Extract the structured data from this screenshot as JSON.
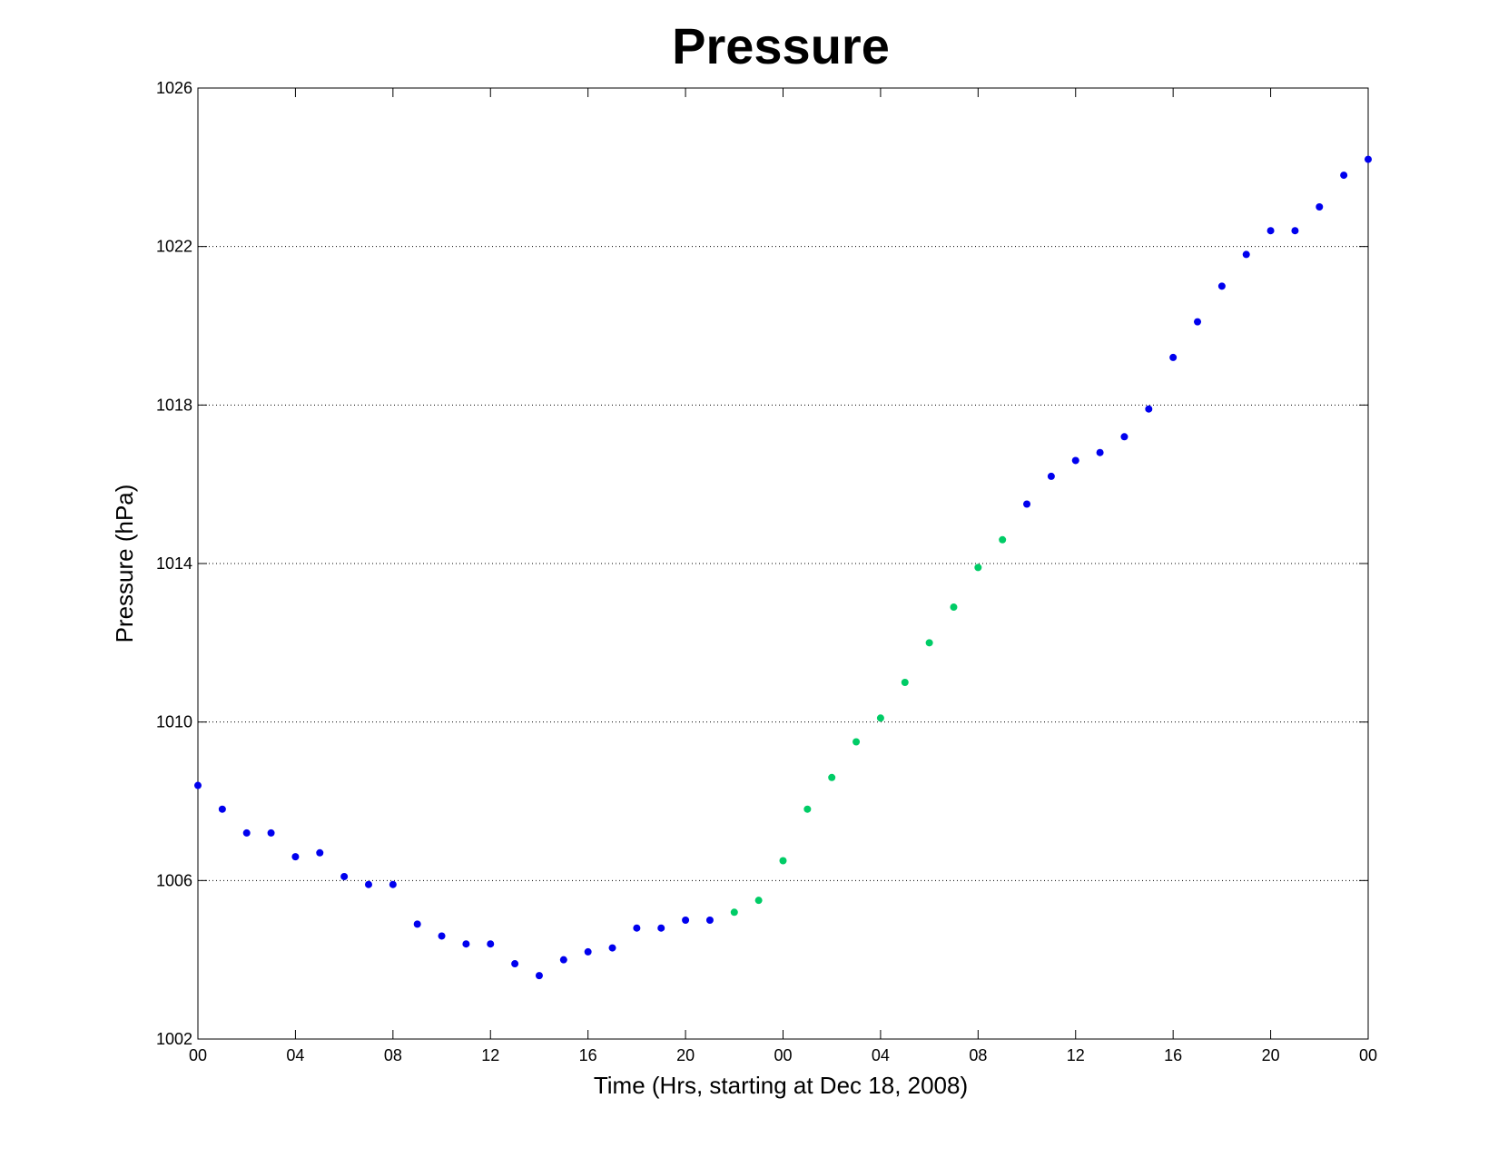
{
  "chart_data": {
    "type": "scatter",
    "title": "Pressure",
    "xlabel": "Time (Hrs, starting at Dec 18, 2008)",
    "ylabel": "Pressure (hPa)",
    "xlim": [
      0,
      48
    ],
    "ylim": [
      1002,
      1026
    ],
    "x_ticks": [
      0,
      4,
      8,
      12,
      16,
      20,
      24,
      28,
      32,
      36,
      40,
      44,
      48
    ],
    "x_tick_labels": [
      "00",
      "04",
      "08",
      "12",
      "16",
      "20",
      "00",
      "04",
      "08",
      "12",
      "16",
      "20",
      "00"
    ],
    "y_ticks": [
      1002,
      1006,
      1010,
      1014,
      1018,
      1022,
      1026
    ],
    "y_tick_labels": [
      "1002",
      "1006",
      "1010",
      "1014",
      "1018",
      "1022",
      "1026"
    ],
    "grid": "horizontal dotted",
    "colors": {
      "blue": "#0000ee",
      "green": "#00cc66"
    },
    "series": [
      {
        "color": "#0000ee",
        "x": [
          0,
          1,
          2,
          3,
          4,
          5,
          6,
          7,
          8,
          9,
          10,
          11,
          12,
          13,
          14,
          15,
          16,
          17,
          18,
          19,
          20,
          21,
          34,
          35,
          36,
          37,
          38,
          39,
          40,
          41,
          42,
          43,
          44,
          45,
          46,
          47,
          48
        ],
        "y": [
          1008.4,
          1007.8,
          1007.2,
          1007.2,
          1006.6,
          1006.7,
          1006.1,
          1005.9,
          1005.9,
          1004.9,
          1004.6,
          1004.4,
          1004.4,
          1003.9,
          1003.6,
          1004.0,
          1004.2,
          1004.3,
          1004.8,
          1004.8,
          1005.0,
          1005.0,
          1015.5,
          1016.2,
          1016.6,
          1016.8,
          1017.2,
          1017.9,
          1019.2,
          1020.1,
          1021.0,
          1021.8,
          1022.4,
          1022.4,
          1023.0,
          1023.8,
          1024.2
        ]
      },
      {
        "color": "#00cc66",
        "x": [
          22,
          23,
          24,
          25,
          26,
          27,
          28,
          29,
          30,
          31,
          32,
          33
        ],
        "y": [
          1005.2,
          1005.5,
          1006.5,
          1007.8,
          1008.6,
          1009.5,
          1010.1,
          1011.0,
          1012.0,
          1012.9,
          1013.9,
          1014.6
        ]
      }
    ]
  }
}
